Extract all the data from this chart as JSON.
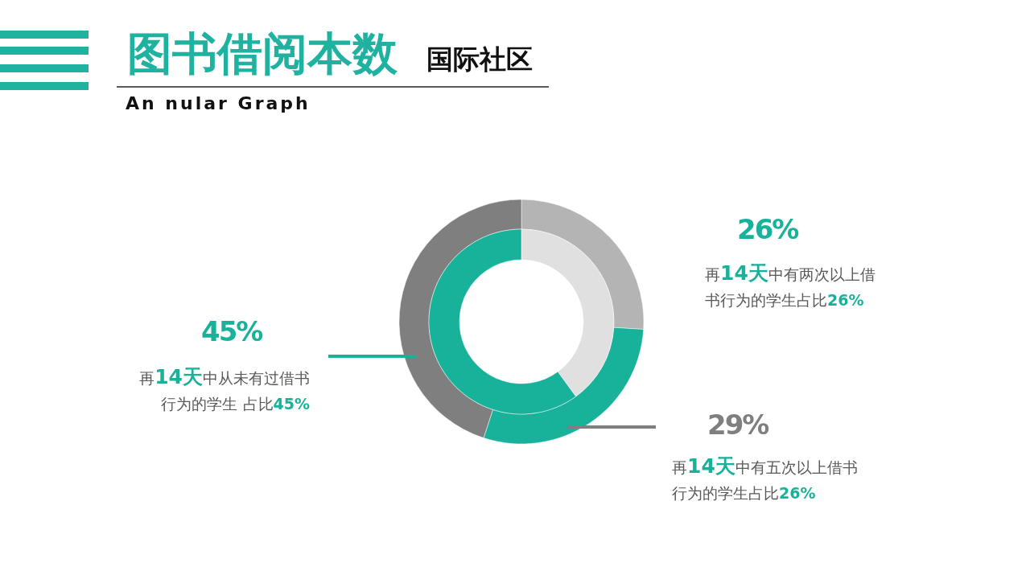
{
  "chart_data": {
    "type": "donut",
    "title": "图书借阅本数",
    "subtitle": "国际社区",
    "series": [
      {
        "values": [
          26,
          29,
          45
        ],
        "colors": [
          "#b3b4b3",
          "#18b29a",
          "#7f7f7f"
        ]
      },
      {
        "values": [
          40,
          60
        ],
        "colors": [
          "#e0e0e0",
          "#18b29a"
        ]
      }
    ],
    "annotations": [
      "An nular Graph",
      "45%",
      "再14天中从未有过借书行为的学生 占比45%",
      "26%",
      "再14天中有两次以上借书行为的学生占比26%",
      "29%",
      "再14天中有五次以上借书行为的学生占比26%"
    ]
  }
}
